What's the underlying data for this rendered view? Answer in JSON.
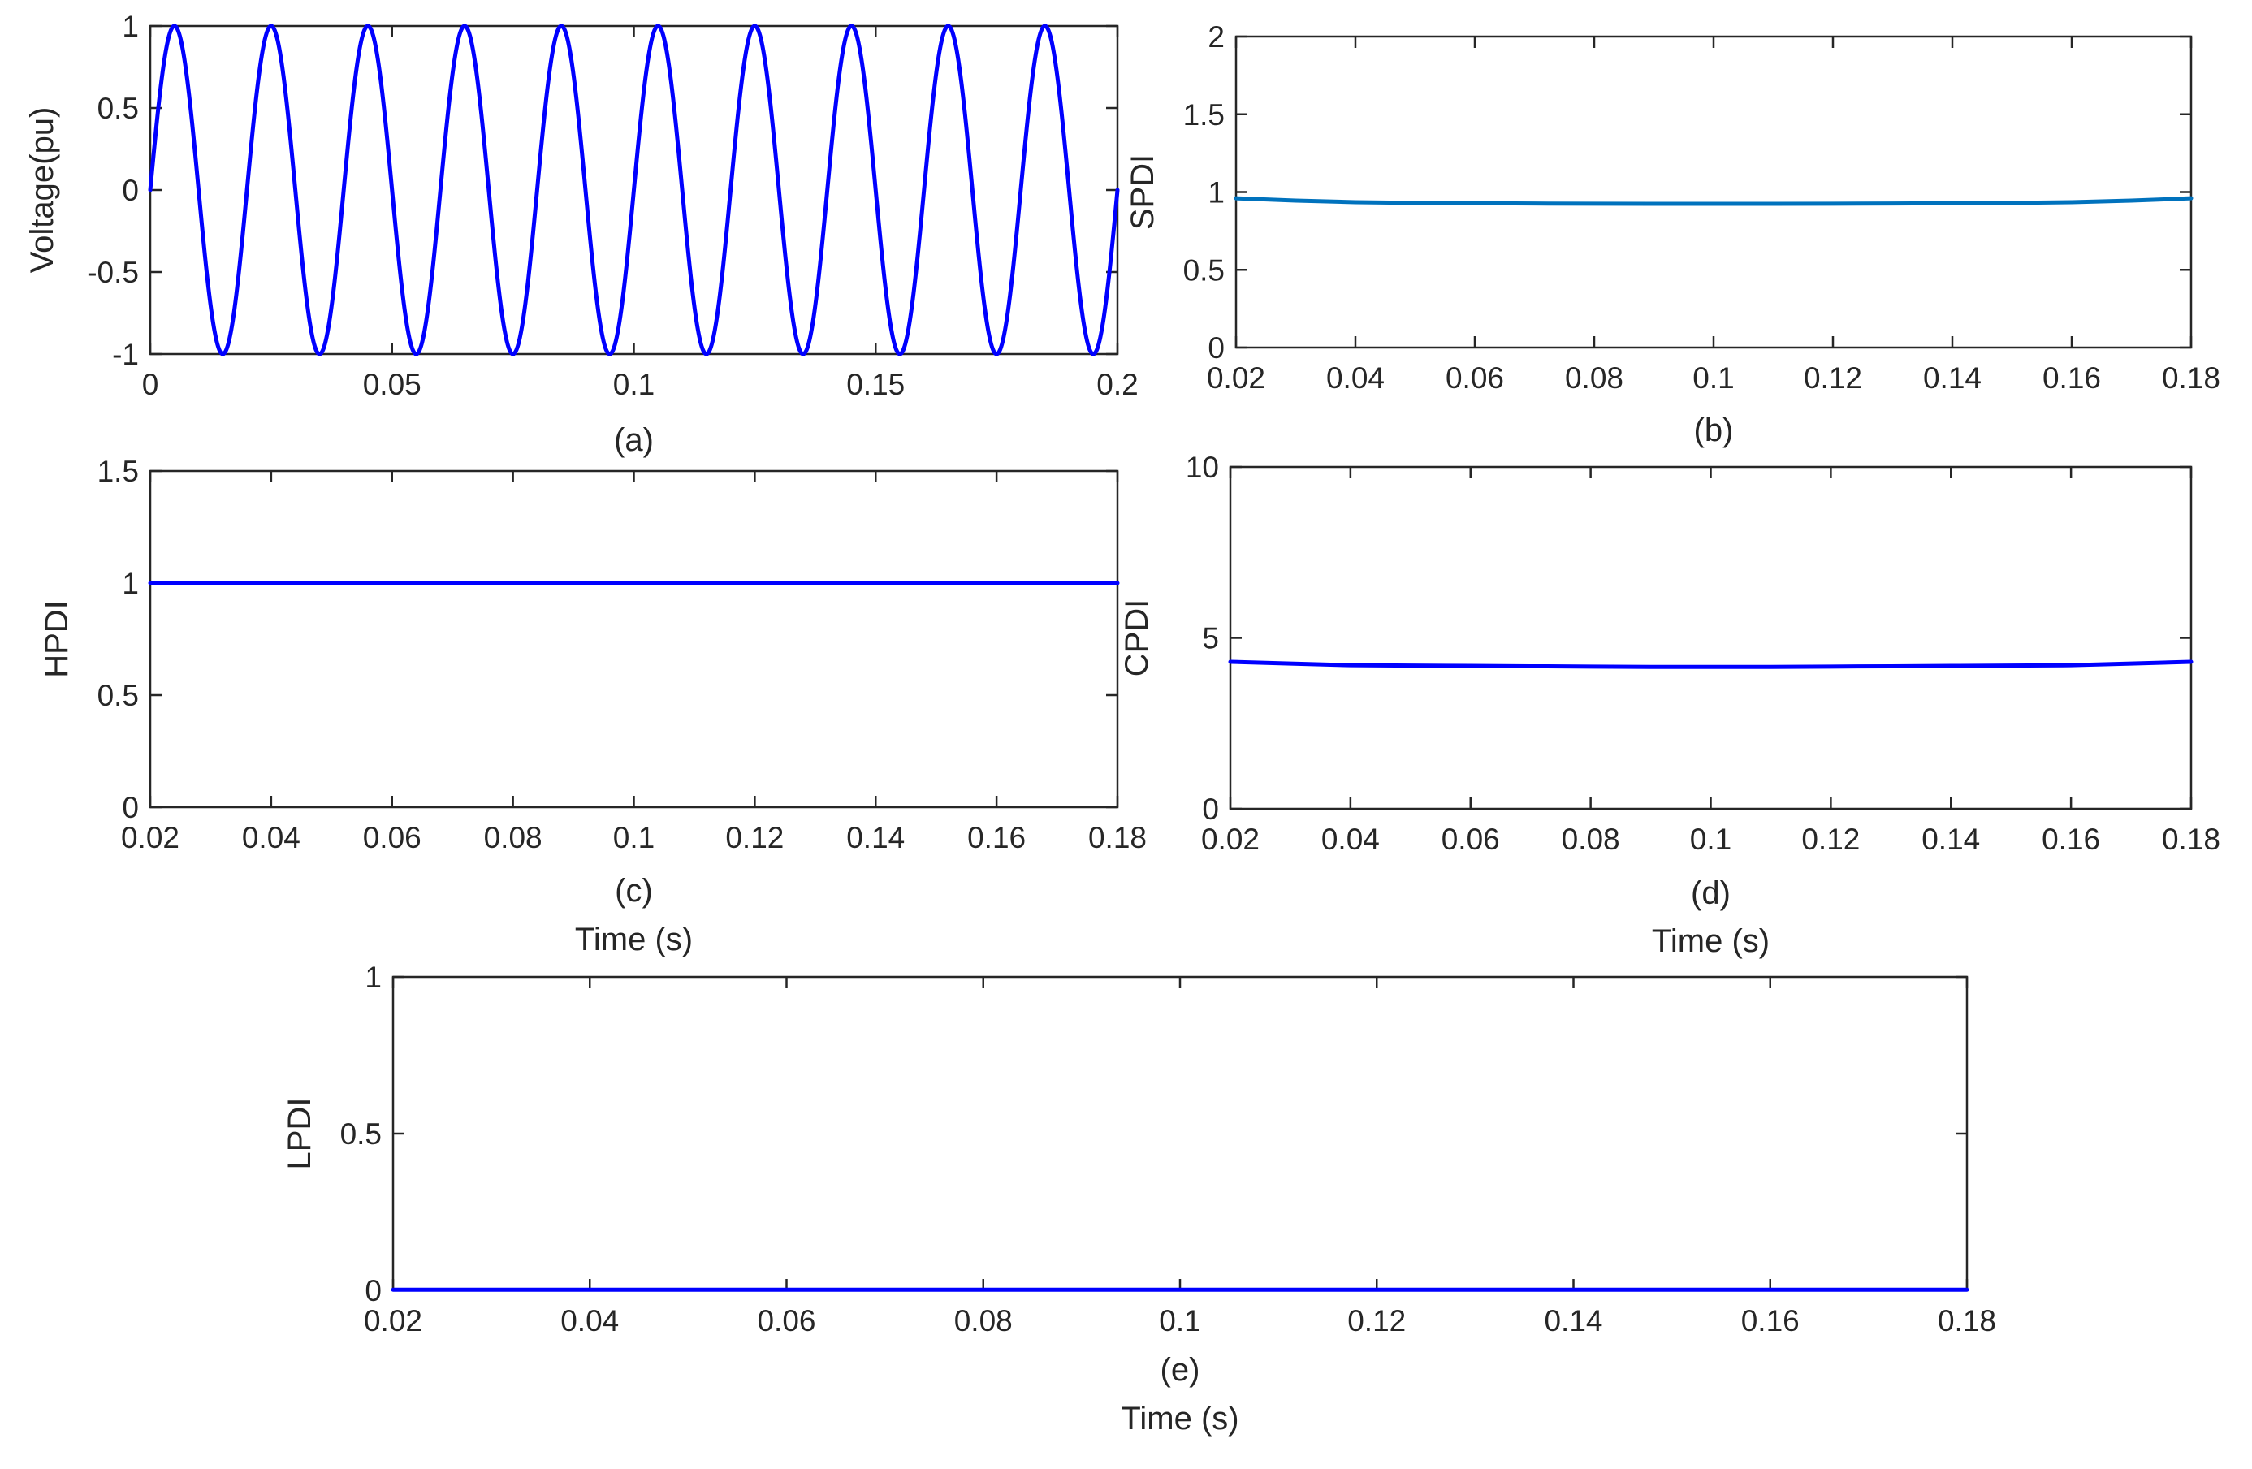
{
  "chart_data": [
    {
      "id": "a",
      "type": "line",
      "caption": "(a)",
      "xlabel": "",
      "ylabel": "Voltage(pu)",
      "xlim": [
        0,
        0.2
      ],
      "ylim": [
        -1,
        1
      ],
      "xticks": [
        0,
        0.05,
        0.1,
        0.15,
        0.2
      ],
      "xtick_labels": [
        "0",
        "0.05",
        "0.1",
        "0.15",
        "0.2"
      ],
      "yticks": [
        -1,
        -0.5,
        0,
        0.5,
        1
      ],
      "ytick_labels": [
        "-1",
        "-0.5",
        "0",
        "0.5",
        "1"
      ],
      "grid": false,
      "series": [
        {
          "kind": "sine",
          "amplitude": 1,
          "frequency_hz": 50,
          "x_start": 0,
          "x_end": 0.2,
          "color": "#0000ff"
        }
      ]
    },
    {
      "id": "b",
      "type": "line",
      "caption": "(b)",
      "xlabel": "",
      "ylabel": "SPDI",
      "xlim": [
        0.02,
        0.18
      ],
      "ylim": [
        0,
        2
      ],
      "xticks": [
        0.02,
        0.04,
        0.06,
        0.08,
        0.1,
        0.12,
        0.14,
        0.16,
        0.18
      ],
      "xtick_labels": [
        "0.02",
        "0.04",
        "0.06",
        "0.08",
        "0.1",
        "0.12",
        "0.14",
        "0.16",
        "0.18"
      ],
      "yticks": [
        0,
        0.5,
        1,
        1.5,
        2
      ],
      "ytick_labels": [
        "0",
        "0.5",
        "1",
        "1.5",
        "2"
      ],
      "grid": false,
      "series": [
        {
          "kind": "points",
          "color": "#0072bd",
          "x": [
            0.02,
            0.03,
            0.04,
            0.05,
            0.06,
            0.07,
            0.08,
            0.09,
            0.1,
            0.11,
            0.12,
            0.13,
            0.14,
            0.15,
            0.16,
            0.17,
            0.18
          ],
          "y": [
            0.96,
            0.945,
            0.935,
            0.93,
            0.928,
            0.926,
            0.925,
            0.924,
            0.924,
            0.924,
            0.925,
            0.926,
            0.928,
            0.93,
            0.935,
            0.945,
            0.96
          ]
        }
      ]
    },
    {
      "id": "c",
      "type": "line",
      "caption": "(c)",
      "xlabel": "Time (s)",
      "ylabel": "HPDI",
      "xlim": [
        0.02,
        0.18
      ],
      "ylim": [
        0,
        1.5
      ],
      "xticks": [
        0.02,
        0.04,
        0.06,
        0.08,
        0.1,
        0.12,
        0.14,
        0.16,
        0.18
      ],
      "xtick_labels": [
        "0.02",
        "0.04",
        "0.06",
        "0.08",
        "0.1",
        "0.12",
        "0.14",
        "0.16",
        "0.18"
      ],
      "yticks": [
        0,
        0.5,
        1,
        1.5
      ],
      "ytick_labels": [
        "0",
        "0.5",
        "1",
        "1.5"
      ],
      "grid": false,
      "series": [
        {
          "kind": "points",
          "color": "#0000ff",
          "x": [
            0.02,
            0.18
          ],
          "y": [
            1.0,
            1.0
          ]
        }
      ]
    },
    {
      "id": "d",
      "type": "line",
      "caption": "(d)",
      "xlabel": "Time (s)",
      "ylabel": "CPDI",
      "xlim": [
        0.02,
        0.18
      ],
      "ylim": [
        0,
        10
      ],
      "xticks": [
        0.02,
        0.04,
        0.06,
        0.08,
        0.1,
        0.12,
        0.14,
        0.16,
        0.18
      ],
      "xtick_labels": [
        "0.02",
        "0.04",
        "0.06",
        "0.08",
        "0.1",
        "0.12",
        "0.14",
        "0.16",
        "0.18"
      ],
      "yticks": [
        0,
        5,
        10
      ],
      "ytick_labels": [
        "0",
        "5",
        "10"
      ],
      "grid": false,
      "series": [
        {
          "kind": "points",
          "color": "#0000ff",
          "x": [
            0.02,
            0.03,
            0.04,
            0.05,
            0.06,
            0.07,
            0.08,
            0.09,
            0.1,
            0.11,
            0.12,
            0.13,
            0.14,
            0.15,
            0.16,
            0.17,
            0.18
          ],
          "y": [
            4.3,
            4.25,
            4.2,
            4.19,
            4.18,
            4.17,
            4.16,
            4.15,
            4.15,
            4.15,
            4.16,
            4.17,
            4.18,
            4.19,
            4.2,
            4.25,
            4.3
          ]
        }
      ]
    },
    {
      "id": "e",
      "type": "line",
      "caption": "(e)",
      "xlabel": "Time (s)",
      "ylabel": "LPDI",
      "xlim": [
        0.02,
        0.18
      ],
      "ylim": [
        0,
        1
      ],
      "xticks": [
        0.02,
        0.04,
        0.06,
        0.08,
        0.1,
        0.12,
        0.14,
        0.16,
        0.18
      ],
      "xtick_labels": [
        "0.02",
        "0.04",
        "0.06",
        "0.08",
        "0.1",
        "0.12",
        "0.14",
        "0.16",
        "0.18"
      ],
      "yticks": [
        0,
        0.5,
        1
      ],
      "ytick_labels": [
        "0",
        "0.5",
        "1"
      ],
      "grid": false,
      "series": [
        {
          "kind": "points",
          "color": "#0000ff",
          "x": [
            0.02,
            0.18
          ],
          "y": [
            0.002,
            0.002
          ]
        }
      ]
    }
  ]
}
